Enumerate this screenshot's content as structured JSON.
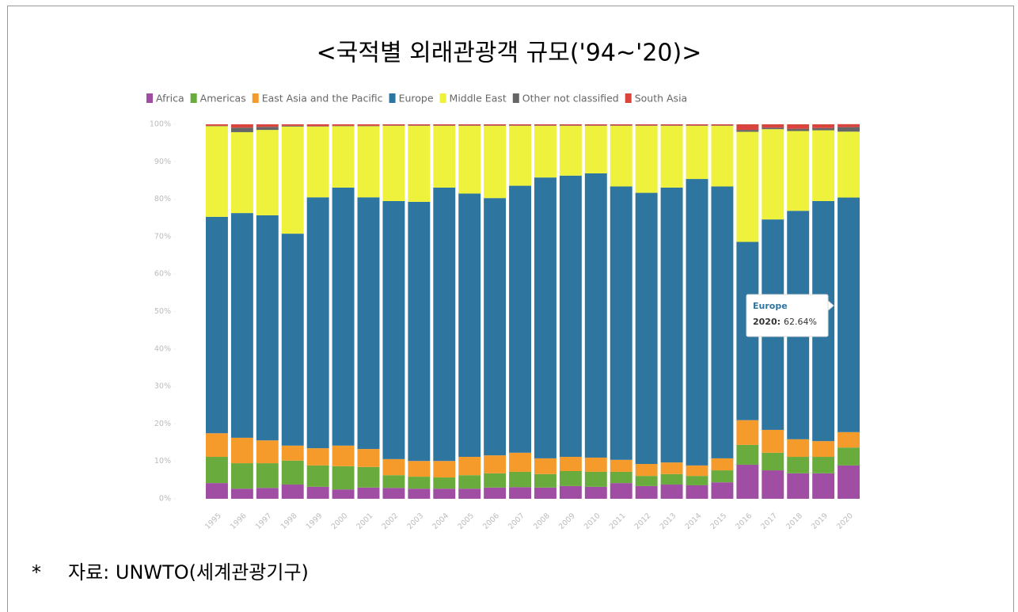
{
  "chart_data": {
    "type": "stacked_bar",
    "title": "<국적별 외래관광객 규모('94~'20)>",
    "categories": [
      "1995",
      "1996",
      "1997",
      "1998",
      "1999",
      "2000",
      "2001",
      "2002",
      "2003",
      "2004",
      "2005",
      "2006",
      "2007",
      "2008",
      "2009",
      "2010",
      "2011",
      "2012",
      "2013",
      "2014",
      "2015",
      "2016",
      "2017",
      "2018",
      "2019",
      "2020"
    ],
    "series": [
      {
        "name": "Africa",
        "color": "#a04ea4",
        "values": [
          4.2,
          2.7,
          2.9,
          3.8,
          3.2,
          2.5,
          3.0,
          2.9,
          2.7,
          2.7,
          2.7,
          3.0,
          3.1,
          3.0,
          3.4,
          3.2,
          4.2,
          3.4,
          3.8,
          3.6,
          4.4,
          9.1,
          7.6,
          6.8,
          6.8,
          8.9
        ]
      },
      {
        "name": "Americas",
        "color": "#6aab3e",
        "values": [
          7.0,
          6.8,
          6.6,
          6.4,
          5.7,
          6.2,
          5.5,
          3.4,
          3.2,
          3.0,
          3.6,
          3.8,
          4.1,
          3.6,
          4.0,
          4.0,
          3.0,
          2.7,
          2.8,
          2.5,
          3.2,
          5.3,
          4.7,
          4.4,
          4.4,
          4.8
        ]
      },
      {
        "name": "East Asia and the Pacific",
        "color": "#f59b2c",
        "values": [
          6.3,
          6.8,
          6.1,
          4.0,
          4.6,
          5.5,
          4.8,
          4.3,
          4.2,
          4.4,
          4.9,
          4.8,
          5.1,
          4.2,
          3.8,
          3.8,
          3.2,
          3.2,
          3.1,
          2.8,
          3.2,
          6.6,
          6.1,
          4.7,
          4.2,
          4.1
        ]
      },
      {
        "name": "Europe",
        "color": "#2e76a0",
        "values": [
          57.8,
          60.0,
          60.1,
          56.6,
          67.0,
          68.9,
          67.2,
          68.9,
          69.2,
          73.0,
          70.3,
          68.7,
          71.3,
          75.0,
          75.1,
          75.9,
          73.0,
          72.4,
          73.4,
          76.5,
          72.6,
          47.6,
          56.2,
          61.0,
          64.1,
          62.64
        ]
      },
      {
        "name": "Middle East",
        "color": "#eef23c",
        "values": [
          24.2,
          21.6,
          22.8,
          28.6,
          18.9,
          16.4,
          19.0,
          20.1,
          20.3,
          16.5,
          18.1,
          19.3,
          16.0,
          13.8,
          13.3,
          12.7,
          16.2,
          17.9,
          16.5,
          14.2,
          16.2,
          29.4,
          24.1,
          21.3,
          18.9,
          17.6
        ]
      },
      {
        "name": "Other not classified",
        "color": "#666666",
        "values": [
          0.1,
          1.2,
          0.8,
          0.2,
          0.1,
          0.1,
          0.1,
          0.1,
          0.1,
          0.1,
          0.1,
          0.1,
          0.1,
          0.1,
          0.1,
          0.1,
          0.1,
          0.1,
          0.1,
          0.1,
          0.1,
          0.5,
          0.4,
          0.6,
          0.6,
          1.2
        ]
      },
      {
        "name": "South Asia",
        "color": "#d9453c",
        "values": [
          0.4,
          0.9,
          0.7,
          0.4,
          0.5,
          0.4,
          0.4,
          0.3,
          0.3,
          0.3,
          0.3,
          0.3,
          0.3,
          0.3,
          0.3,
          0.3,
          0.3,
          0.3,
          0.3,
          0.3,
          0.3,
          1.5,
          0.9,
          1.2,
          1.0,
          0.8
        ]
      }
    ],
    "ylim": [
      0,
      100
    ],
    "yticks": [
      {
        "value": 0,
        "label": "0%"
      },
      {
        "value": 10,
        "label": "10%"
      },
      {
        "value": 20,
        "label": "20%"
      },
      {
        "value": 30,
        "label": "30%"
      },
      {
        "value": 40,
        "label": "40%"
      },
      {
        "value": 50,
        "label": "50%"
      },
      {
        "value": 60,
        "label": "60%"
      },
      {
        "value": 70,
        "label": "70%"
      },
      {
        "value": 80,
        "label": "80%"
      },
      {
        "value": 90,
        "label": "90%"
      },
      {
        "value": 100,
        "label": "100%"
      }
    ],
    "tooltip": {
      "title": "Europe",
      "label": "2020:",
      "value_label": "62.64%"
    }
  },
  "note_marker": "*",
  "source": "자료: UNWTO(세계관광기구)"
}
